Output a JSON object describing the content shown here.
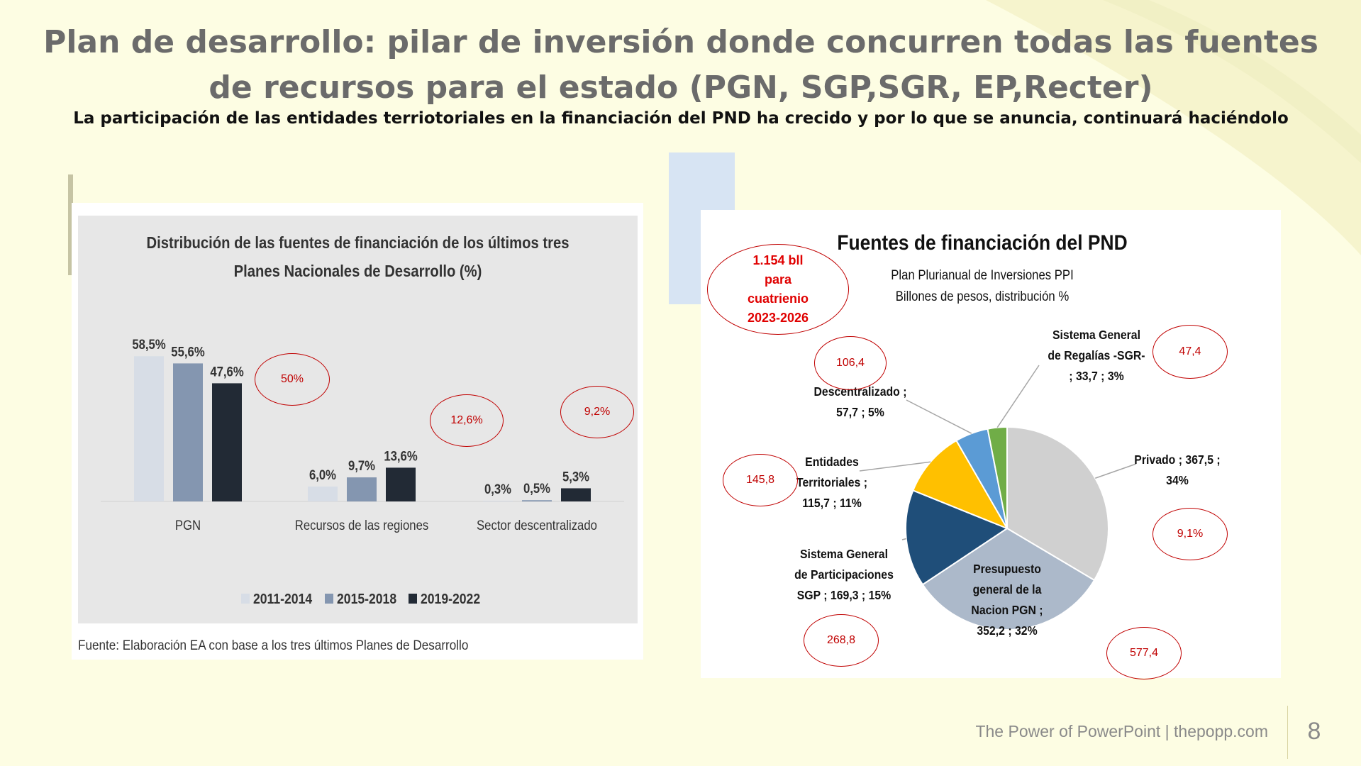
{
  "slide": {
    "title": "Plan de desarrollo: pilar de inversión donde concurren todas las fuentes de recursos para el estado (PGN, SGP,SGR, EP,Recter)",
    "subtitle": "La participación de las entidades terriotoriales en la financiación del PND ha crecido y por lo que se anuncia, continuará haciéndolo",
    "footer": "The Power of PowerPoint | thepopp.com",
    "page_number": "8",
    "colors": {
      "background": "#fdfde3",
      "deco": "#f7f5cf",
      "oval_red": "#c00000"
    }
  },
  "chart_data": [
    {
      "type": "bar",
      "title": "Distribución de  las fuentes de financiación de los últimos tres Planes Nacionales de Desarrollo (%)",
      "title_lines": [
        "Distribución de  las fuentes de financiación de los últimos tres",
        "Planes Nacionales de Desarrollo (%)"
      ],
      "categories": [
        "PGN",
        "Recursos de las regiones",
        "Sector descentralizado"
      ],
      "series": [
        {
          "name": "2011-2014",
          "values": [
            58.5,
            6.0,
            0.3
          ],
          "labels": [
            "58,5%",
            "6,0%",
            "0,3%"
          ],
          "color": "#d7dde6"
        },
        {
          "name": "2015-2018",
          "values": [
            55.6,
            9.7,
            0.5
          ],
          "labels": [
            "55,6%",
            "9,7%",
            "0,5%"
          ],
          "color": "#8496b0"
        },
        {
          "name": "2019-2022",
          "values": [
            47.6,
            13.6,
            5.3
          ],
          "labels": [
            "47,6%",
            "13,6%",
            "5,3%"
          ],
          "color": "#222a35"
        }
      ],
      "legend_position": "bottom",
      "grid": false,
      "source": "Fuente: Elaboración EA con base a los tres últimos Planes de Desarrollo",
      "annotations": [
        "50%",
        "12,6%",
        "9,2%"
      ]
    },
    {
      "type": "pie",
      "title": "Fuentes de financiación del PND",
      "subtitle_lines": [
        "Plan Plurianual de Inversiones PPI",
        "Billones de pesos, distribución %"
      ],
      "slices": [
        {
          "name": "Privado",
          "value": 367.5,
          "percent": 34,
          "color": "#d0d0d0",
          "label_lines": [
            "Privado ;  367,5 ;",
            "34%"
          ]
        },
        {
          "name": "Presupuesto general de la Nacion PGN",
          "value": 352.2,
          "percent": 32,
          "color": "#acb9ca",
          "label_lines": [
            "Presupuesto",
            "general de la",
            "Nacion PGN ;",
            "352,2 ; 32%"
          ]
        },
        {
          "name": "Sistema General de Participaciones SGP",
          "value": 169.3,
          "percent": 15,
          "color": "#1f4e79",
          "label_lines": [
            "Sistema General",
            "de Participaciones",
            "SGP ;  169,3 ; 15%"
          ]
        },
        {
          "name": "Entidades Territoriales",
          "value": 115.7,
          "percent": 11,
          "color": "#ffc000",
          "label_lines": [
            "Entidades",
            "Territoriales ;",
            "115,7 ; 11%"
          ]
        },
        {
          "name": "Descentralizado",
          "value": 57.7,
          "percent": 5,
          "color": "#5b9bd5",
          "label_lines": [
            "Descentralizado ;",
            "57,7 ; 5%"
          ]
        },
        {
          "name": "Sistema General de Regalías -SGR-",
          "value": 33.7,
          "percent": 3,
          "color": "#70ad47",
          "label_lines": [
            "Sistema General",
            "de Regalías -SGR-",
            ";  33,7 ; 3%"
          ]
        }
      ],
      "total_note_lines": [
        "1.154 bll",
        "para",
        "cuatrienio",
        "2023-2026"
      ],
      "annotations": [
        "106,4",
        "47,4",
        "145,8",
        "9,1%",
        "268,8",
        "577,4"
      ]
    }
  ]
}
